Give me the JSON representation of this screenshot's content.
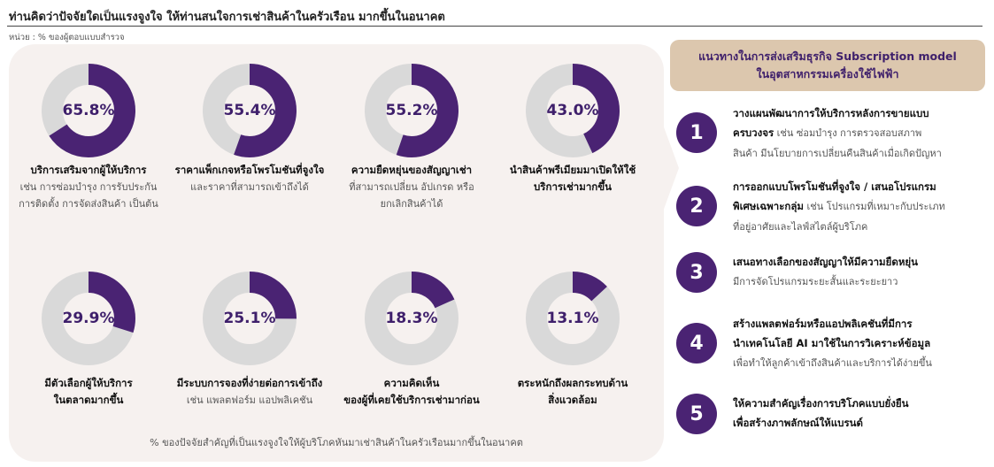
{
  "title": "ท่านคิดว่าปัจจัยใดเป็นแรงจูงใจ ให้ท่านสนใจการเช่าสินค้าในครัวเรือน มากขึ้นในอนาคต",
  "unit": "หน่วย : % ของผู้ตอบแบบสำรวจ",
  "colors": {
    "fill": "#4a2373",
    "track": "#d9d9d9",
    "text": "#3e1f6b"
  },
  "chart_data": {
    "type": "pie",
    "donut": true,
    "categories": [
      "บริการเสริมจากผู้ให้บริการ",
      "ราคาแพ็กเกจหรือโพรโมชันที่จูงใจ",
      "ความยืดหยุ่นของสัญญาเช่า",
      "นำสินค้าพรีเมียมมาเปิดให้ใช้บริการเช่ามากขึ้น",
      "มีตัวเลือกผู้ให้บริการในตลาดมากขึ้น",
      "มีระบบการจองที่ง่ายต่อการเข้าถึง",
      "ความคิดเห็นของผู้ที่เคยใช้บริการเช่ามาก่อน",
      "ตระหนักถึงผลกระทบด้านสิ่งแวดล้อม"
    ],
    "values": [
      65.8,
      55.4,
      55.2,
      43.0,
      29.9,
      25.1,
      18.3,
      13.1
    ],
    "value_labels": [
      "65.8%",
      "55.4%",
      "55.2%",
      "43.0%",
      "29.9%",
      "25.1%",
      "18.3%",
      "13.1%"
    ],
    "note": "% ของปัจจัยสำคัญที่เป็นแรงจูงใจให้ผู้บริโภคหันมาเช่าสินค้าในครัวเรือนมากขึ้นในอนาคต"
  },
  "donut_labels": [
    {
      "bold": [
        "บริการเสริมจากผู้ให้บริการ"
      ],
      "sub": [
        "เช่น การซ่อมบำรุง การรับประกัน",
        "การติดตั้ง การจัดส่งสินค้า เป็นต้น"
      ]
    },
    {
      "bold": [
        "ราคาแพ็กเกจหรือโพรโมชันที่จูงใจ"
      ],
      "sub": [
        "และราคาที่สามารถเข้าถึงได้"
      ]
    },
    {
      "bold": [
        "ความยืดหยุ่นของสัญญาเช่า"
      ],
      "sub": [
        "ที่สามารถเปลี่ยน อัปเกรด หรือ",
        "ยกเลิกสินค้าได้"
      ]
    },
    {
      "bold": [
        "นำสินค้าพรีเมียมมาเปิดให้ใช้",
        "บริการเช่ามากขึ้น"
      ],
      "sub": []
    },
    {
      "bold": [
        "มีตัวเลือกผู้ให้บริการ",
        "ในตลาดมากขึ้น"
      ],
      "sub": []
    },
    {
      "bold": [
        "มีระบบการจองที่ง่ายต่อการเข้าถึง"
      ],
      "sub": [
        "เช่น แพลตฟอร์ม แอปพลิเคชัน"
      ]
    },
    {
      "bold": [
        "ความคิดเห็น",
        "ของผู้ที่เคยใช้บริการเช่ามาก่อน"
      ],
      "sub": []
    },
    {
      "bold": [
        "ตระหนักถึงผลกระทบด้าน",
        "สิ่งแวดล้อม"
      ],
      "sub": []
    }
  ],
  "right": {
    "header": [
      "แนวทางในการส่งเสริมธุรกิจ Subscription model",
      "ในอุตสาหกรรมเครื่องใช้ไฟฟ้า"
    ],
    "steps": [
      {
        "num": "1",
        "lines": [
          [
            {
              "t": "วางแผนพัฒนาการให้บริการหลังการขายแบบ",
              "b": true
            }
          ],
          [
            {
              "t": "ครบวงจร",
              "b": true
            },
            {
              "t": " เช่น ซ่อมบำรุง การตรวจสอบสภาพ",
              "b": false
            }
          ],
          [
            {
              "t": "สินค้า มีนโยบายการเปลี่ยนคืนสินค้าเมื่อเกิดปัญหา",
              "b": false
            }
          ]
        ]
      },
      {
        "num": "2",
        "lines": [
          [
            {
              "t": "การออกแบบโพรโมชันที่จูงใจ / เสนอโปรแกรม",
              "b": true
            }
          ],
          [
            {
              "t": "พิเศษเฉพาะกลุ่ม",
              "b": true
            },
            {
              "t": " เช่น โปรแกรมที่เหมาะกับประเภท",
              "b": false
            }
          ],
          [
            {
              "t": "ที่อยู่อาศัยและไลฟ์สไตล์ผู้บริโภค",
              "b": false
            }
          ]
        ]
      },
      {
        "num": "3",
        "lines": [
          [
            {
              "t": "เสนอทางเลือกของสัญญาให้มีความยืดหยุ่น",
              "b": true
            }
          ],
          [
            {
              "t": "มีการจัดโปรแกรมระยะสั้นและระยะยาว",
              "b": false
            }
          ]
        ]
      },
      {
        "num": "4",
        "lines": [
          [
            {
              "t": "สร้างแพลตฟอร์มหรือแอปพลิเคชันที่มีการ",
              "b": true
            }
          ],
          [
            {
              "t": "นำเทคโนโลยี AI มาใช้ในการวิเคราะห์ข้อมูล",
              "b": true
            }
          ],
          [
            {
              "t": "เพื่อทำให้ลูกค้าเข้าถึงสินค้าและบริการได้ง่ายขึ้น",
              "b": false
            }
          ]
        ]
      },
      {
        "num": "5",
        "lines": [
          [
            {
              "t": "ให้ความสำคัญเรื่องการบริโภคแบบยั่งยืน",
              "b": true
            }
          ],
          [
            {
              "t": "เพื่อสร้างภาพลักษณ์ให้แบรนด์",
              "b": true
            }
          ]
        ]
      }
    ]
  }
}
